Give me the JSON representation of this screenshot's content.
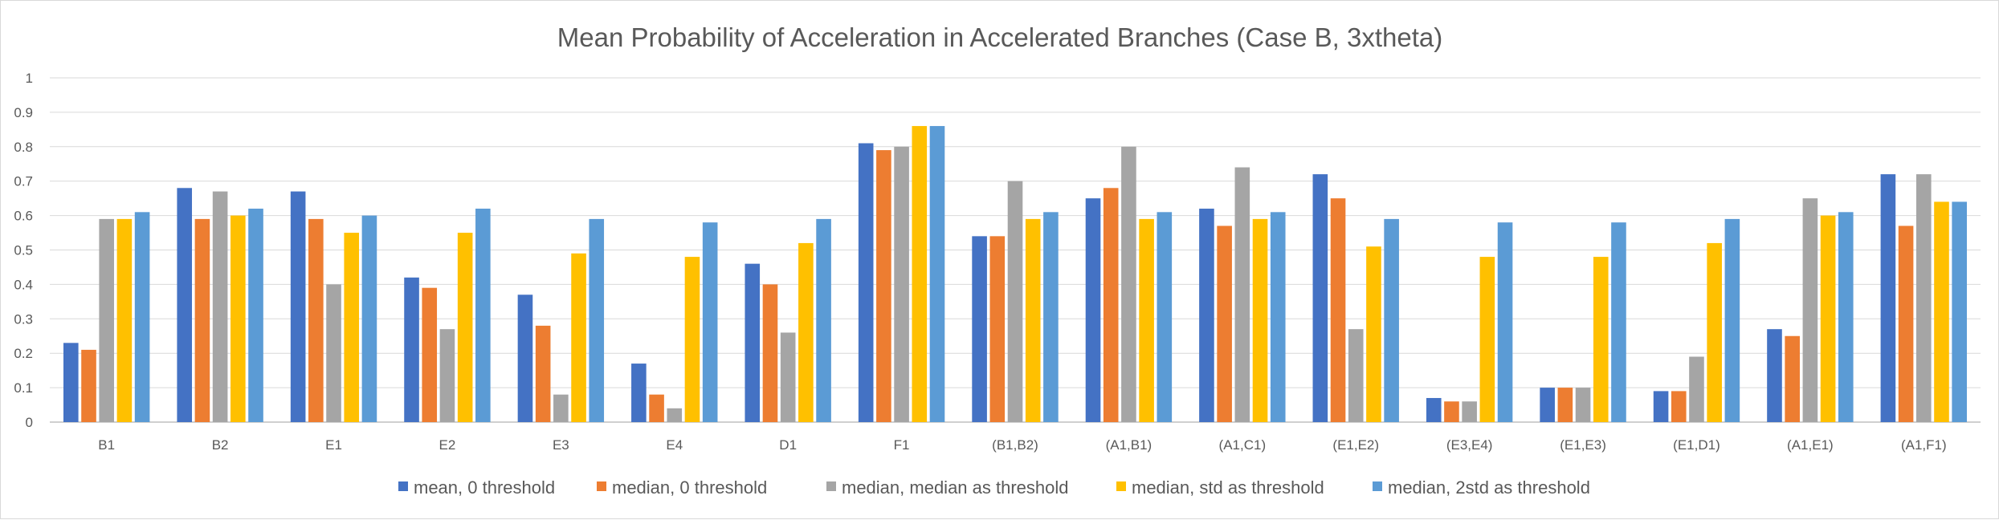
{
  "chart_data": {
    "type": "bar",
    "title": "Mean Probability of Acceleration in Accelerated Branches (Case B, 3xtheta)",
    "xlabel": "",
    "ylabel": "",
    "ylim": [
      0,
      1
    ],
    "yticks": [
      "0",
      "0.1",
      "0.2",
      "0.3",
      "0.4",
      "0.5",
      "0.6",
      "0.7",
      "0.8",
      "0.9",
      "1"
    ],
    "grid": true,
    "legend_position": "bottom",
    "categories": [
      "B1",
      "B2",
      "E1",
      "E2",
      "E3",
      "E4",
      "D1",
      "F1",
      "(B1,B2)",
      "(A1,B1)",
      "(A1,C1)",
      "(E1,E2)",
      "(E3,E4)",
      "(E1,E3)",
      "(E1,D1)",
      "(A1,E1)",
      "(A1,F1)"
    ],
    "series": [
      {
        "name": "mean, 0 threshold",
        "color": "#4472c4",
        "values": [
          0.23,
          0.68,
          0.67,
          0.42,
          0.37,
          0.17,
          0.46,
          0.81,
          0.54,
          0.65,
          0.62,
          0.72,
          0.07,
          0.1,
          0.09,
          0.27,
          0.72
        ]
      },
      {
        "name": "median, 0 threshold",
        "color": "#ed7d31",
        "values": [
          0.21,
          0.59,
          0.59,
          0.39,
          0.28,
          0.08,
          0.4,
          0.79,
          0.54,
          0.68,
          0.57,
          0.65,
          0.06,
          0.1,
          0.09,
          0.25,
          0.57
        ]
      },
      {
        "name": "median, median as threshold",
        "color": "#a5a5a5",
        "values": [
          0.59,
          0.67,
          0.4,
          0.27,
          0.08,
          0.04,
          0.26,
          0.8,
          0.7,
          0.8,
          0.74,
          0.27,
          0.06,
          0.1,
          0.19,
          0.65,
          0.72
        ]
      },
      {
        "name": "median, std as threshold",
        "color": "#ffc000",
        "values": [
          0.59,
          0.6,
          0.55,
          0.55,
          0.49,
          0.48,
          0.52,
          0.86,
          0.59,
          0.59,
          0.59,
          0.51,
          0.48,
          0.48,
          0.52,
          0.6,
          0.64
        ]
      },
      {
        "name": "median, 2std as threshold",
        "color": "#5b9bd5",
        "values": [
          0.61,
          0.62,
          0.6,
          0.62,
          0.59,
          0.58,
          0.59,
          0.86,
          0.61,
          0.61,
          0.61,
          0.59,
          0.58,
          0.58,
          0.59,
          0.61,
          0.64
        ]
      }
    ]
  }
}
